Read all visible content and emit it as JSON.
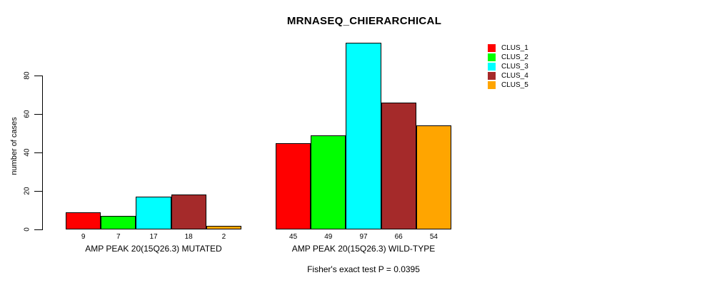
{
  "chart_data": {
    "type": "bar",
    "title": "MRNASEQ_CHIERARCHICAL",
    "ylabel": "number of cases",
    "xlabel": "",
    "categories": [
      "AMP PEAK 20(15Q26.3) MUTATED",
      "AMP PEAK 20(15Q26.3) WILD-TYPE"
    ],
    "series": [
      {
        "name": "CLUS_1",
        "color": "#FF0000",
        "values": [
          9,
          45
        ]
      },
      {
        "name": "CLUS_2",
        "color": "#00FF00",
        "values": [
          7,
          49
        ]
      },
      {
        "name": "CLUS_3",
        "color": "#00FFFF",
        "values": [
          17,
          97
        ]
      },
      {
        "name": "CLUS_4",
        "color": "#A52A2A",
        "values": [
          18,
          66
        ]
      },
      {
        "name": "CLUS_5",
        "color": "#FFA500",
        "values": [
          2,
          54
        ]
      }
    ],
    "bar_value_labels": true,
    "yticks": [
      0,
      20,
      40,
      60,
      80
    ],
    "ylim": [
      0,
      100
    ],
    "grid": false,
    "legend_position": "top-right",
    "annotation": "Fisher's exact test P = 0.0395",
    "background_color": "#FFFFFF",
    "axis_color": "#000000"
  }
}
